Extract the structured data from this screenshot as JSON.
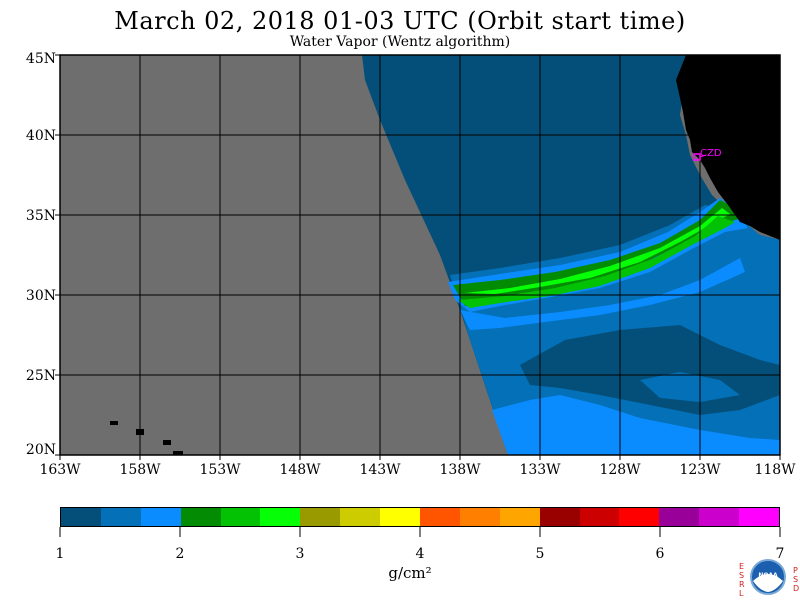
{
  "header": {
    "title": "March 02, 2018  01-03 UTC  (Orbit start time)",
    "subtitle": "Water Vapor (Wentz algorithm)"
  },
  "map": {
    "lon_range": [
      -163,
      -118
    ],
    "lat_range": [
      20,
      45
    ],
    "y_labels": [
      "45N",
      "40N",
      "35N",
      "30N",
      "25N",
      "20N"
    ],
    "x_labels": [
      "163W",
      "158W",
      "153W",
      "148W",
      "143W",
      "138W",
      "133W",
      "128W",
      "123W",
      "118W"
    ],
    "station_label": "CZD",
    "colors": {
      "no_data": "#6e6e6e",
      "land": "#000000",
      "marker": "#ff00ff"
    }
  },
  "colorbar": {
    "range": [
      1,
      7
    ],
    "tick_labels": [
      "1",
      "2",
      "3",
      "4",
      "5",
      "6",
      "7"
    ],
    "unit": "g/cm²",
    "colors": [
      "#034f79",
      "#0470b8",
      "#0a8cff",
      "#038c03",
      "#03c103",
      "#06ff06",
      "#999900",
      "#cccc00",
      "#ffff00",
      "#ff5500",
      "#ff7f00",
      "#ffa500",
      "#990000",
      "#cc0000",
      "#ff0000",
      "#990099",
      "#cc00cc",
      "#ff00ff"
    ]
  },
  "logo": {
    "name": "noaa-esrl-psd-logo",
    "left_letters": "ESRL",
    "right_letters": "PSD"
  }
}
